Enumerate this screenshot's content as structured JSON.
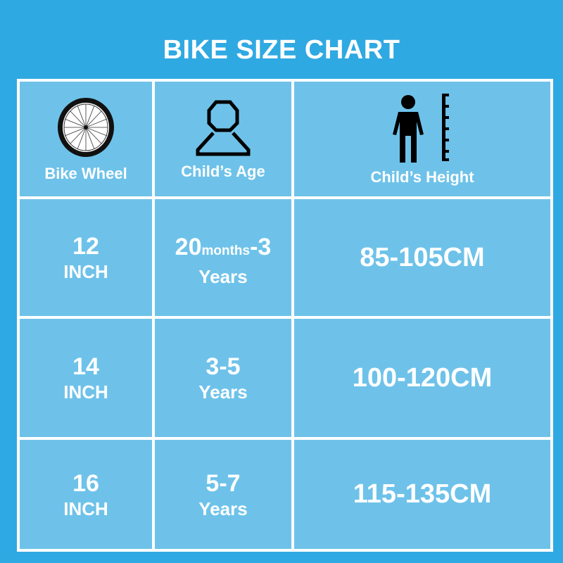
{
  "title": "BIKE SIZE CHART",
  "headers": [
    {
      "label": "Bike Wheel",
      "icon": "bike-wheel-icon"
    },
    {
      "label": "Child’s Age",
      "icon": "person-outline-icon"
    },
    {
      "label": "Child’s Height",
      "icon": "person-height-ruler-icon"
    }
  ],
  "rows": [
    {
      "wheel_size": "12",
      "wheel_unit": "INCH",
      "age_start": "20",
      "age_start_unit": "months",
      "age_end": "-3",
      "age_unit": "Years",
      "height": "85-105CM"
    },
    {
      "wheel_size": "14",
      "wheel_unit": "INCH",
      "age_range": "3-5",
      "age_unit": "Years",
      "height": "100-120CM"
    },
    {
      "wheel_size": "16",
      "wheel_unit": "INCH",
      "age_range": "5-7",
      "age_unit": "Years",
      "height": "115-135CM"
    }
  ],
  "colors": {
    "background": "#2fa9e2",
    "cell": "#6ec2e9",
    "grid": "#ffffff",
    "text": "#ffffff"
  }
}
